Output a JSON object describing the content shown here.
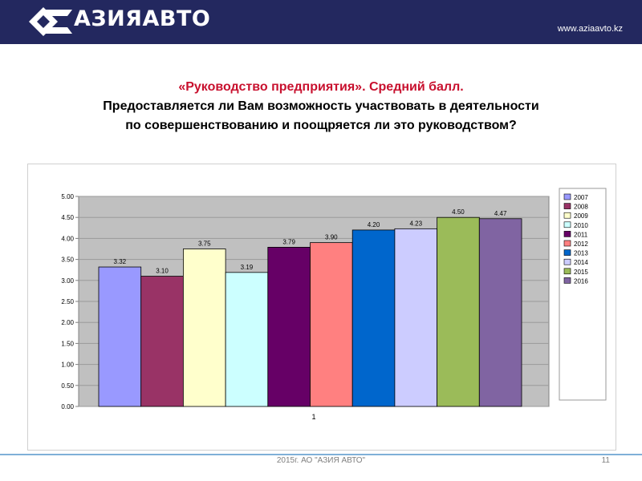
{
  "header": {
    "brand": "АЗИЯАВТО",
    "url": "www.aziaavto.kz"
  },
  "title": {
    "line1": "«Руководство предприятия». Средний балл.",
    "line2": "Предоставляется ли Вам возможность участвовать в деятельности",
    "line3": "по совершенствованию и поощряется ли это руководством?"
  },
  "colors": {
    "header_bg": "#23285f",
    "title_accent": "#c8102e",
    "plot_bg": "#c0c0c0"
  },
  "chart_data": {
    "type": "bar",
    "categories": [
      "1"
    ],
    "series": [
      {
        "name": "2007",
        "values": [
          3.32
        ],
        "label": "3.32",
        "color": "#9999ff"
      },
      {
        "name": "2008",
        "values": [
          3.1
        ],
        "label": "3.10",
        "color": "#993366"
      },
      {
        "name": "2009",
        "values": [
          3.75
        ],
        "label": "3.75",
        "color": "#ffffcc"
      },
      {
        "name": "2010",
        "values": [
          3.19
        ],
        "label": "3.19",
        "color": "#ccffff"
      },
      {
        "name": "2011",
        "values": [
          3.79
        ],
        "label": "3.79",
        "color": "#660066"
      },
      {
        "name": "2012",
        "values": [
          3.9
        ],
        "label": "3.90",
        "color": "#ff8080"
      },
      {
        "name": "2013",
        "values": [
          4.2
        ],
        "label": "4.20",
        "color": "#0066cc"
      },
      {
        "name": "2014",
        "values": [
          4.23
        ],
        "label": "4.23",
        "color": "#ccccff"
      },
      {
        "name": "2015",
        "values": [
          4.5
        ],
        "label": "4.50",
        "color": "#9bbb59"
      },
      {
        "name": "2016",
        "values": [
          4.47
        ],
        "label": "4.47",
        "color": "#8064a2"
      }
    ],
    "yticks": [
      "0.00",
      "0.50",
      "1.00",
      "1.50",
      "2.00",
      "2.50",
      "3.00",
      "3.50",
      "4.00",
      "4.50",
      "5.00"
    ],
    "ylim": [
      0,
      5
    ],
    "grid": true,
    "legend_position": "right"
  },
  "footer": {
    "text": "2015г. АО \"АЗИЯ АВТО\"",
    "page": "11"
  }
}
